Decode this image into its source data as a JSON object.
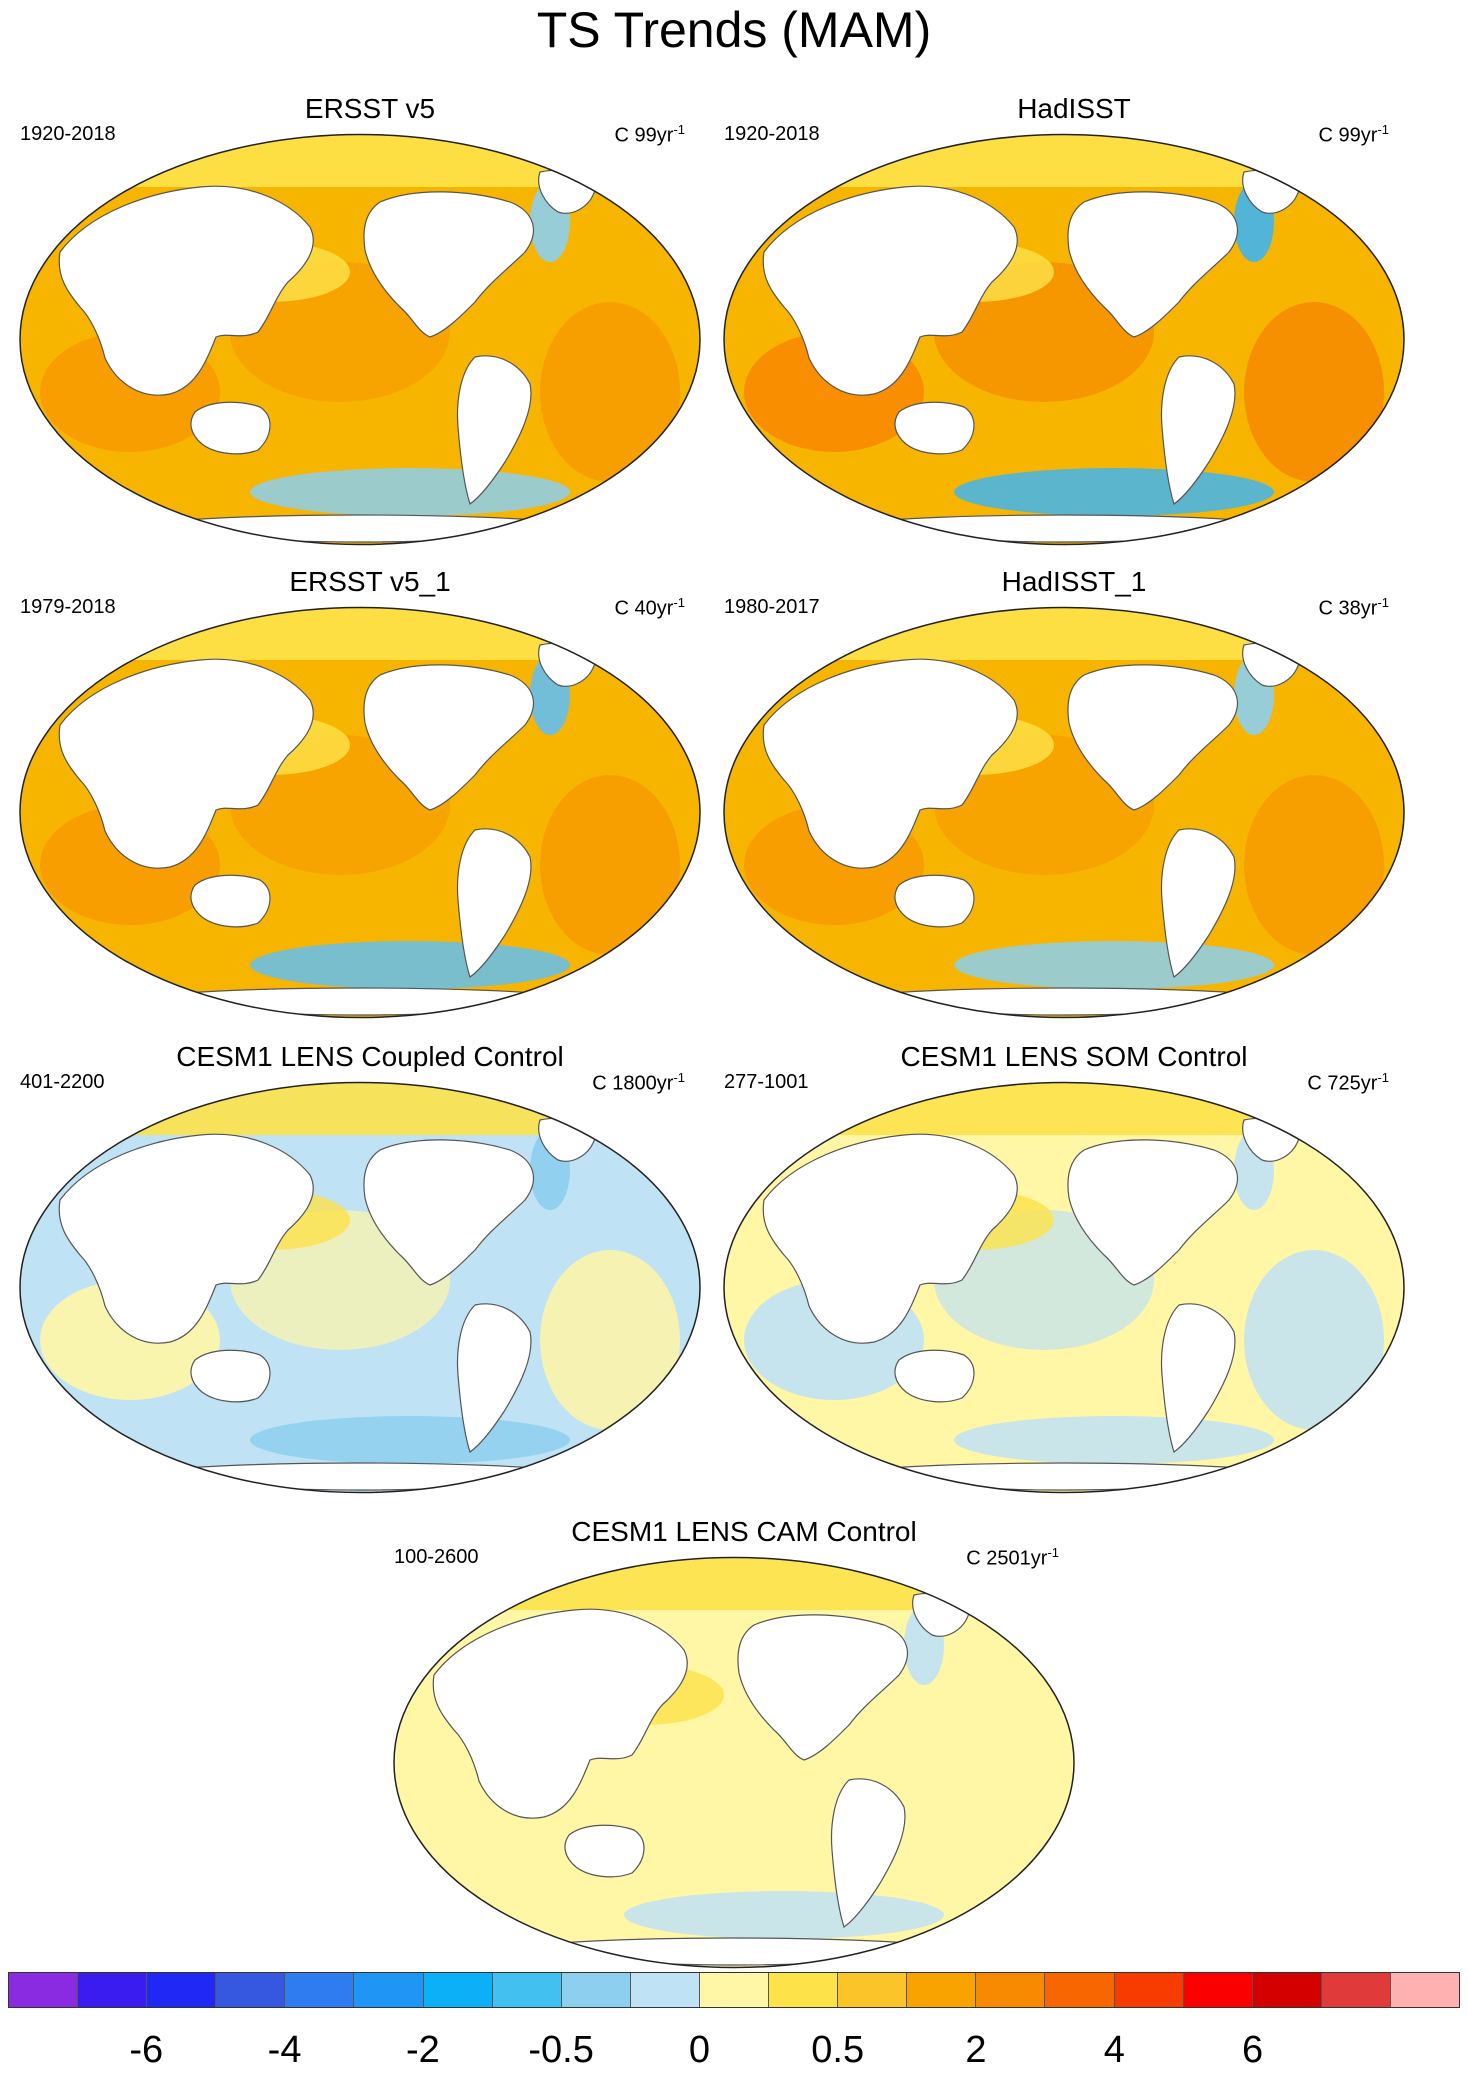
{
  "figure": {
    "title": "TS Trends (MAM)"
  },
  "panels": [
    {
      "title": "ERSST v5",
      "years": "1920-2018",
      "units_prefix": "C 99yr",
      "units_exp": "-1",
      "ocean_color": "#f8b500",
      "accent_color": "#f79b00",
      "secondary_color": "#fde24a",
      "cool_color": "#8ccfee"
    },
    {
      "title": "HadISST",
      "years": "1920-2018",
      "units_prefix": "C 99yr",
      "units_exp": "-1",
      "ocean_color": "#f8b500",
      "accent_color": "#f78a00",
      "secondary_color": "#fde24a",
      "cool_color": "#3fb5f0"
    },
    {
      "title": "ERSST v5_1",
      "years": "1979-2018",
      "units_prefix": "C 40yr",
      "units_exp": "-1",
      "ocean_color": "#f8b500",
      "accent_color": "#f79b00",
      "secondary_color": "#fde24a",
      "cool_color": "#63bff0"
    },
    {
      "title": "HadISST_1",
      "years": "1980-2017",
      "units_prefix": "C 38yr",
      "units_exp": "-1",
      "ocean_color": "#f8b500",
      "accent_color": "#f79b00",
      "secondary_color": "#fde24a",
      "cool_color": "#8ccfee"
    },
    {
      "title": "CESM1 LENS Coupled Control",
      "years": "401-2200",
      "units_prefix": "C 1800yr",
      "units_exp": "-1",
      "ocean_color": "#bfe2f5",
      "accent_color": "#fff6a6",
      "secondary_color": "#fde24a",
      "cool_color": "#8ccfee"
    },
    {
      "title": "CESM1 LENS SOM Control",
      "years": "277-1001",
      "units_prefix": "C 725yr",
      "units_exp": "-1",
      "ocean_color": "#fff6a6",
      "accent_color": "#bfe2f5",
      "secondary_color": "#fde24a",
      "cool_color": "#bfe2f5"
    },
    {
      "title": "CESM1 LENS CAM Control",
      "years": "100-2600",
      "units_prefix": "C 2501yr",
      "units_exp": "-1",
      "ocean_color": "#fff6a6",
      "accent_color": "#fff6a6",
      "secondary_color": "#fde24a",
      "cool_color": "#bfe2f5"
    }
  ],
  "colorbar": {
    "colors": [
      "#8a2be2",
      "#3b1cf0",
      "#1f28f5",
      "#3658e0",
      "#2f7cf0",
      "#1f96f6",
      "#0bb0f7",
      "#42c0f0",
      "#8ccfee",
      "#bfe2f5",
      "#fff6a6",
      "#fde24a",
      "#fbc52a",
      "#f8a300",
      "#f78a00",
      "#f76600",
      "#f83c00",
      "#fb0000",
      "#d40000",
      "#e03a3a",
      "#ffb0b0"
    ],
    "labels": [
      "-6",
      "-4",
      "-2",
      "-0.5",
      "0",
      "0.5",
      "2",
      "4",
      "6"
    ],
    "label_after_box": [
      2,
      4,
      6,
      8,
      10,
      12,
      14,
      16,
      18
    ]
  },
  "land_color": "#ffffff"
}
